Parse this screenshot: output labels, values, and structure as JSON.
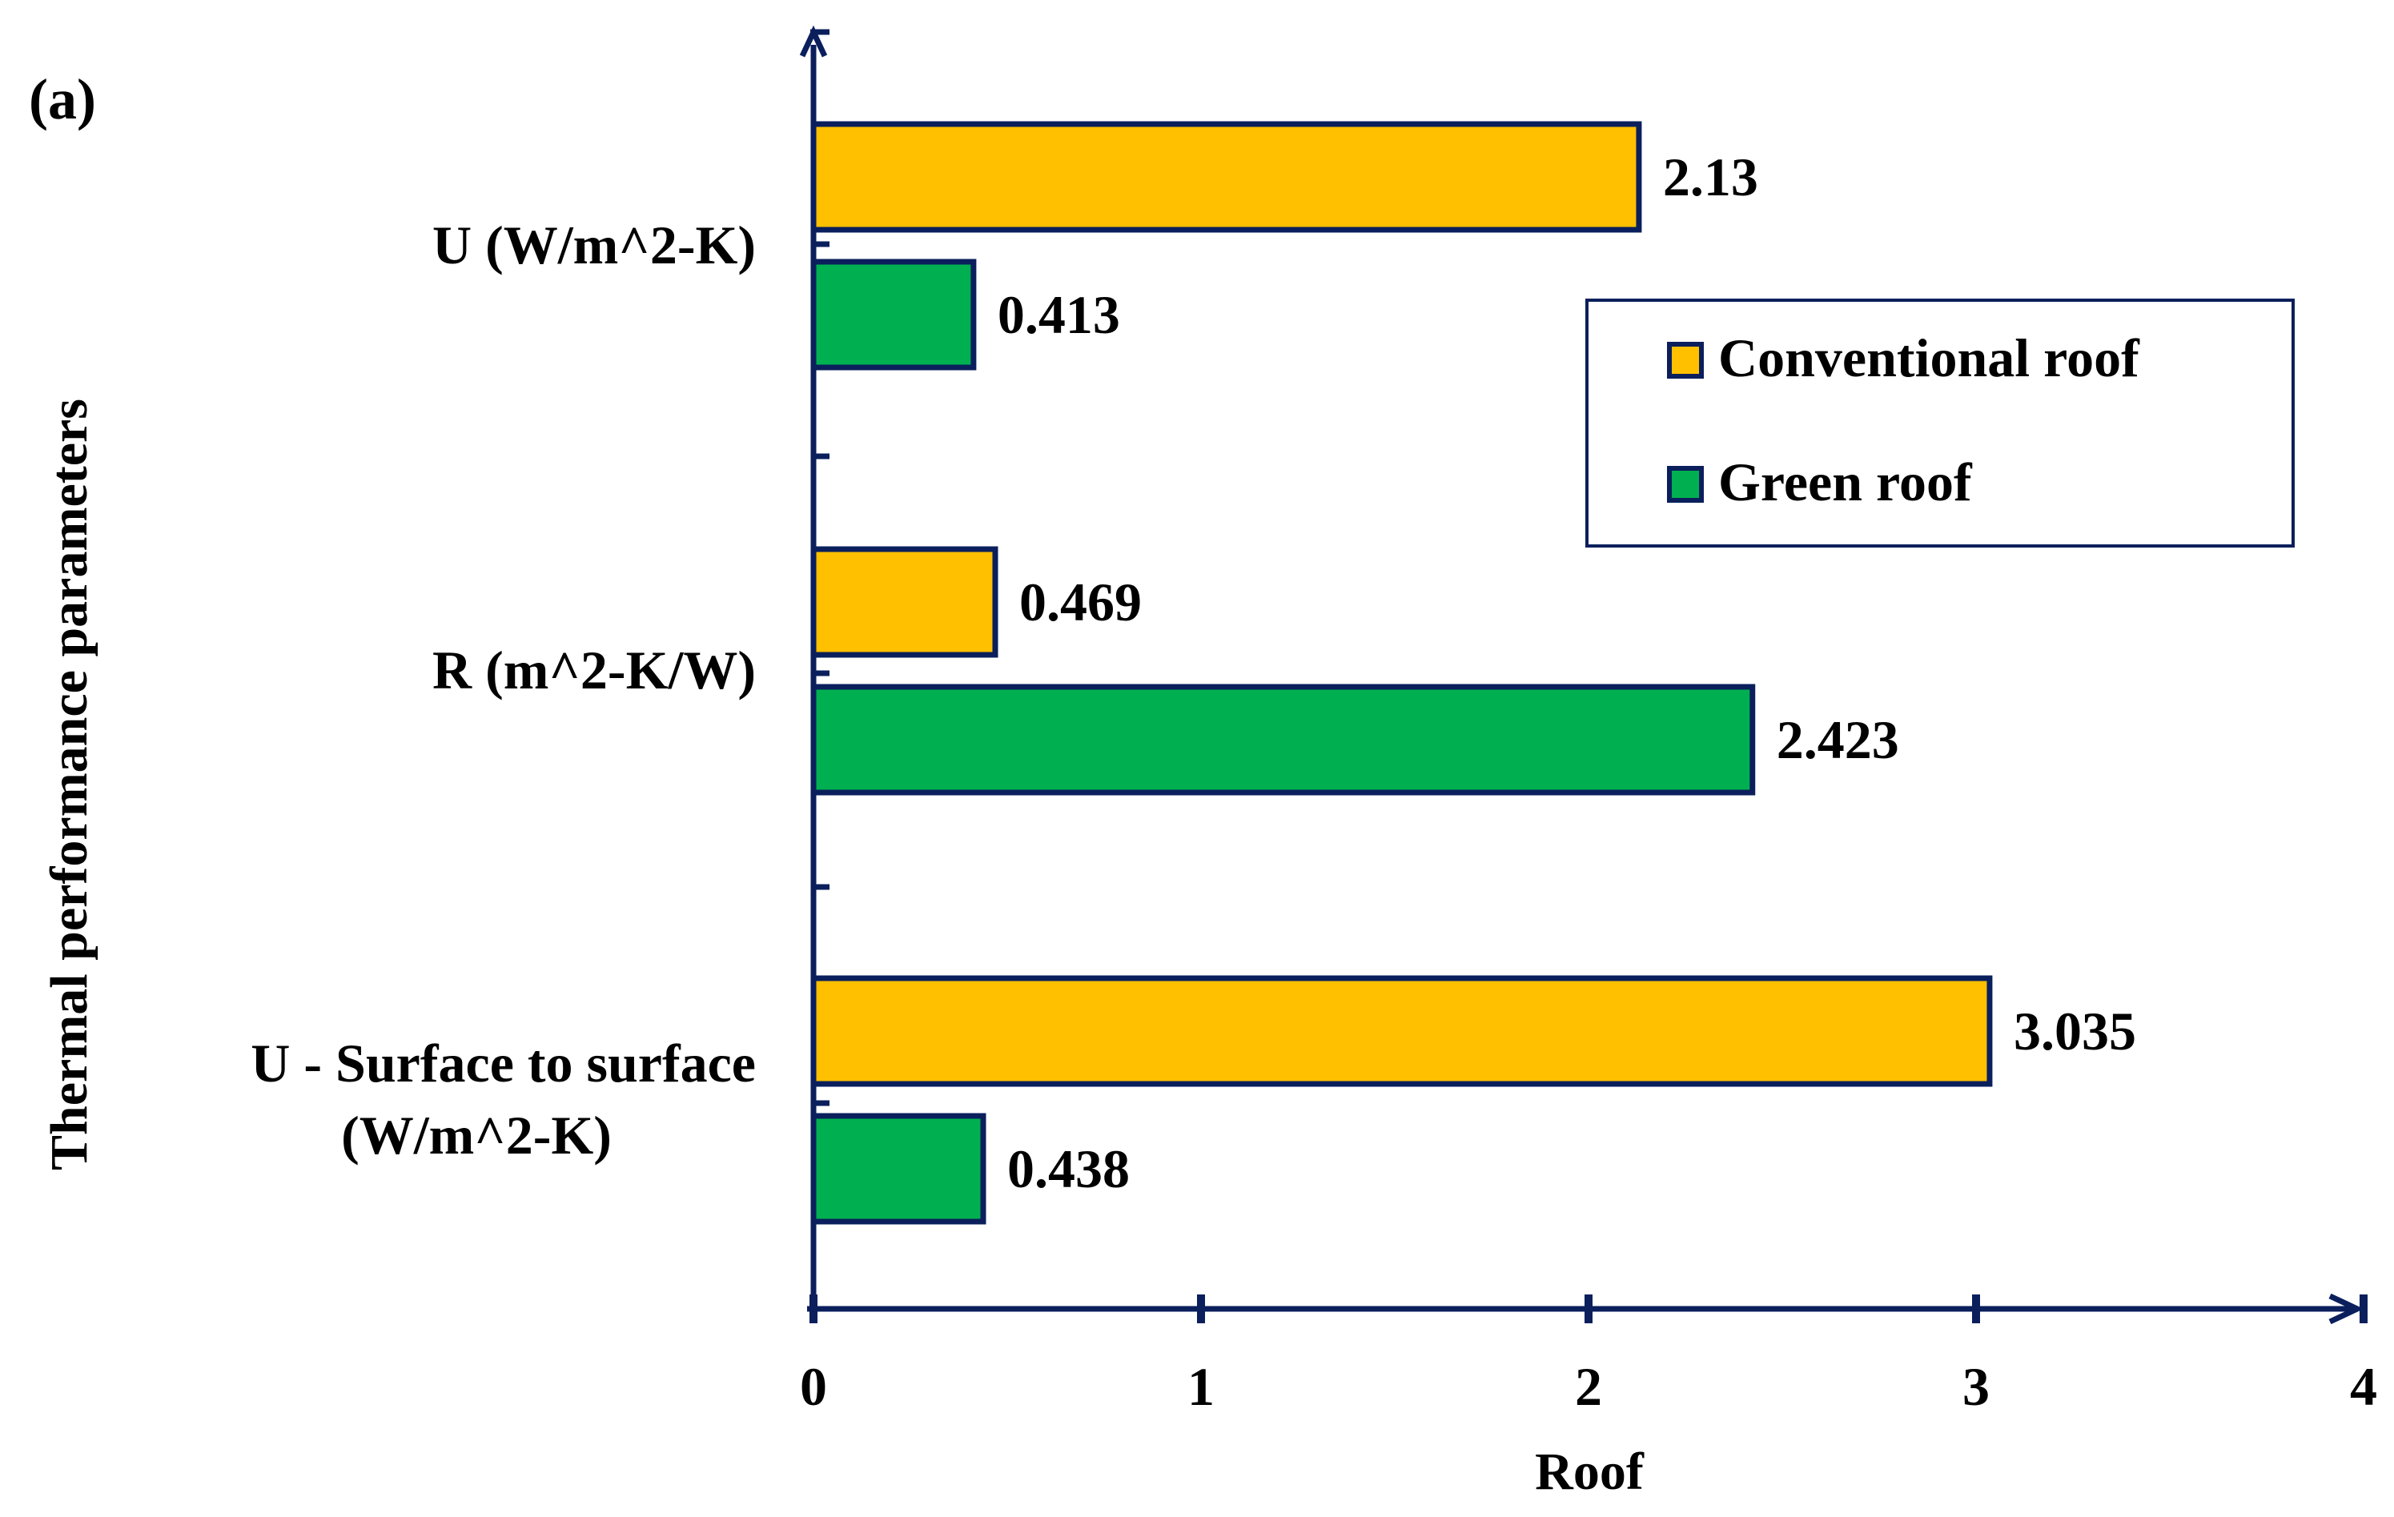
{
  "panel_label": "(a)",
  "colors": {
    "axis": "#0a1f5c",
    "conventional": "#ffc000",
    "green": "#00b050",
    "bar_border": "#0a1f5c",
    "text": "#000000"
  },
  "chart_data": {
    "type": "bar",
    "orientation": "horizontal",
    "title": "",
    "xlabel": "Roof",
    "ylabel": "Thermal performance parameters",
    "xlim": [
      0,
      4
    ],
    "xticks": [
      "0",
      "1",
      "2",
      "3",
      "4"
    ],
    "categories": [
      [
        "U (W/m^2-K)"
      ],
      [
        "R (m^2-K/W)"
      ],
      [
        "U - Surface to surface",
        "(W/m^2-K)"
      ]
    ],
    "series": [
      {
        "name": "Conventional roof",
        "values": [
          2.13,
          0.469,
          3.035
        ],
        "labels": [
          "2.13",
          "0.469",
          "3.035"
        ]
      },
      {
        "name": "Green roof",
        "values": [
          0.413,
          2.423,
          0.438
        ],
        "labels": [
          "0.413",
          "2.423",
          "0.438"
        ]
      }
    ],
    "legend": {
      "position": "upper-right",
      "entries": [
        "Conventional roof",
        "Green roof"
      ]
    },
    "grid": false
  }
}
